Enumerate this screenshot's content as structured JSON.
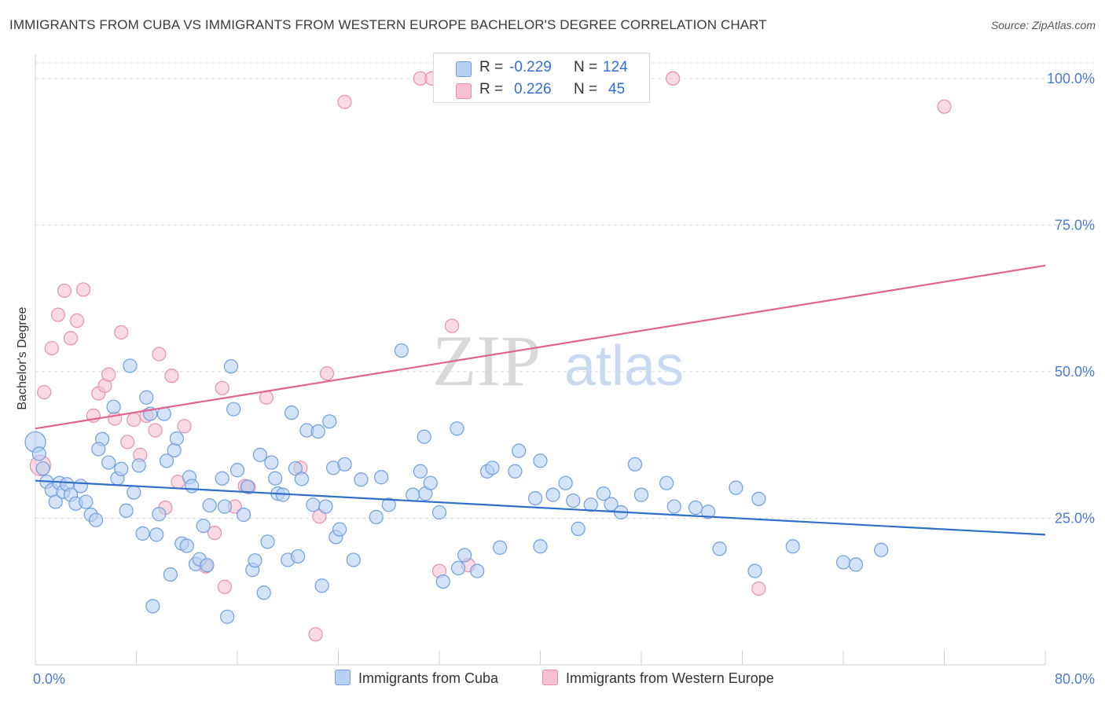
{
  "title": "IMMIGRANTS FROM CUBA VS IMMIGRANTS FROM WESTERN EUROPE BACHELOR'S DEGREE CORRELATION CHART",
  "source": "Source: ZipAtlas.com",
  "watermark": {
    "zip": "ZIP",
    "atlas": "atlas"
  },
  "legend": {
    "r_label": "R =",
    "n_label": "N =",
    "rows": [
      {
        "r": "-0.229",
        "n": "124"
      },
      {
        "r": "0.226",
        "n": "45"
      }
    ]
  },
  "colors": {
    "blue_fill": "#b8d1f2",
    "blue_stroke": "#6f9fe0",
    "blue_line": "#2f6fc8",
    "pink_fill": "#f6c1d1",
    "pink_stroke": "#e98fae",
    "pink_line": "#e0638f",
    "grid": "#d9d9d9",
    "axis_label": "#4a7cc7"
  },
  "chart_data": {
    "type": "scatter",
    "xlabel": "",
    "ylabel": "Bachelor's Degree",
    "xlim": [
      0,
      80
    ],
    "ylim": [
      0,
      104
    ],
    "x_tick_labels": [
      "0.0%",
      "80.0%"
    ],
    "y_ticks": [
      25,
      50,
      75,
      100
    ],
    "y_tick_labels": [
      "25.0%",
      "50.0%",
      "75.0%",
      "100.0%"
    ],
    "grid": true,
    "legend_position": "top-center",
    "series": [
      {
        "name": "Immigrants from Cuba",
        "trend": {
          "x": [
            0,
            80
          ],
          "y": [
            31.4,
            22.2
          ]
        },
        "points": [
          [
            0.0,
            38.0
          ],
          [
            0.3,
            36.0
          ],
          [
            0.6,
            33.5
          ],
          [
            0.9,
            31.2
          ],
          [
            1.3,
            29.8
          ],
          [
            1.6,
            27.8
          ],
          [
            1.9,
            31.0
          ],
          [
            2.2,
            29.5
          ],
          [
            2.5,
            30.8
          ],
          [
            2.8,
            29.0
          ],
          [
            3.2,
            27.5
          ],
          [
            3.6,
            30.5
          ],
          [
            4.0,
            27.8
          ],
          [
            4.4,
            25.6
          ],
          [
            4.8,
            24.7
          ],
          [
            5.3,
            38.5
          ],
          [
            5.0,
            36.8
          ],
          [
            5.8,
            34.5
          ],
          [
            6.2,
            44.0
          ],
          [
            6.5,
            31.8
          ],
          [
            6.8,
            33.4
          ],
          [
            7.2,
            26.3
          ],
          [
            7.5,
            51.0
          ],
          [
            7.8,
            29.4
          ],
          [
            8.2,
            34.0
          ],
          [
            8.5,
            22.4
          ],
          [
            8.8,
            45.6
          ],
          [
            9.1,
            42.8
          ],
          [
            9.3,
            10.0
          ],
          [
            9.6,
            22.2
          ],
          [
            9.8,
            25.7
          ],
          [
            10.2,
            42.8
          ],
          [
            10.4,
            34.8
          ],
          [
            10.7,
            15.4
          ],
          [
            11.0,
            36.6
          ],
          [
            11.2,
            38.6
          ],
          [
            11.6,
            20.7
          ],
          [
            12.0,
            20.3
          ],
          [
            12.2,
            32.0
          ],
          [
            12.4,
            30.5
          ],
          [
            12.7,
            17.2
          ],
          [
            13.0,
            18.0
          ],
          [
            13.3,
            23.7
          ],
          [
            13.6,
            17.0
          ],
          [
            13.8,
            27.2
          ],
          [
            14.8,
            31.8
          ],
          [
            15.2,
            8.2
          ],
          [
            15.5,
            50.9
          ],
          [
            15.7,
            43.6
          ],
          [
            16.0,
            33.2
          ],
          [
            16.5,
            25.6
          ],
          [
            16.8,
            30.4
          ],
          [
            17.2,
            16.2
          ],
          [
            17.4,
            17.8
          ],
          [
            17.8,
            35.8
          ],
          [
            18.1,
            12.3
          ],
          [
            18.4,
            21.0
          ],
          [
            18.7,
            34.5
          ],
          [
            19.0,
            31.8
          ],
          [
            19.2,
            29.2
          ],
          [
            19.6,
            29.0
          ],
          [
            20.0,
            17.9
          ],
          [
            20.3,
            43.0
          ],
          [
            20.6,
            33.5
          ],
          [
            20.8,
            18.5
          ],
          [
            21.1,
            31.7
          ],
          [
            21.5,
            40.0
          ],
          [
            22.0,
            27.3
          ],
          [
            22.4,
            39.8
          ],
          [
            22.7,
            13.5
          ],
          [
            23.0,
            27.0
          ],
          [
            23.3,
            41.5
          ],
          [
            23.6,
            33.6
          ],
          [
            23.8,
            21.8
          ],
          [
            24.1,
            23.1
          ],
          [
            24.5,
            34.2
          ],
          [
            25.2,
            17.9
          ],
          [
            25.8,
            31.6
          ],
          [
            27.0,
            25.2
          ],
          [
            27.4,
            32.0
          ],
          [
            28.0,
            27.3
          ],
          [
            29.0,
            53.6
          ],
          [
            29.9,
            29.0
          ],
          [
            30.5,
            33.0
          ],
          [
            30.8,
            38.9
          ],
          [
            30.9,
            29.2
          ],
          [
            31.3,
            31.0
          ],
          [
            32.0,
            26.0
          ],
          [
            32.3,
            14.2
          ],
          [
            33.4,
            40.3
          ],
          [
            34.0,
            18.7
          ],
          [
            35.0,
            16.0
          ],
          [
            35.8,
            33.0
          ],
          [
            36.2,
            33.6
          ],
          [
            36.8,
            20.0
          ],
          [
            38.0,
            33.0
          ],
          [
            38.3,
            36.5
          ],
          [
            39.6,
            28.4
          ],
          [
            40.0,
            20.2
          ],
          [
            40.0,
            34.8
          ],
          [
            41.0,
            29.0
          ],
          [
            42.0,
            31.0
          ],
          [
            42.6,
            28.0
          ],
          [
            43.0,
            23.2
          ],
          [
            44.0,
            27.3
          ],
          [
            45.0,
            29.2
          ],
          [
            45.6,
            27.4
          ],
          [
            46.4,
            26.0
          ],
          [
            47.5,
            34.2
          ],
          [
            48.0,
            29.0
          ],
          [
            50.0,
            31.0
          ],
          [
            50.6,
            27.0
          ],
          [
            52.3,
            26.8
          ],
          [
            53.3,
            26.1
          ],
          [
            54.2,
            19.8
          ],
          [
            55.5,
            30.2
          ],
          [
            57.0,
            16.0
          ],
          [
            57.3,
            28.3
          ],
          [
            60.0,
            20.2
          ],
          [
            64.0,
            17.5
          ],
          [
            65.0,
            17.1
          ],
          [
            67.0,
            19.6
          ],
          [
            15.0,
            27.0
          ],
          [
            33.5,
            16.5
          ]
        ]
      },
      {
        "name": "Immigrants from Western Europe",
        "trend": {
          "x": [
            0,
            80
          ],
          "y": [
            40.3,
            68.1
          ]
        },
        "points": [
          [
            0.4,
            34.0
          ],
          [
            0.7,
            46.5
          ],
          [
            1.3,
            54.0
          ],
          [
            1.8,
            59.7
          ],
          [
            2.3,
            63.8
          ],
          [
            2.8,
            55.7
          ],
          [
            3.3,
            58.7
          ],
          [
            3.8,
            64.0
          ],
          [
            4.6,
            42.5
          ],
          [
            5.0,
            46.3
          ],
          [
            5.5,
            47.6
          ],
          [
            5.8,
            49.5
          ],
          [
            6.3,
            42.0
          ],
          [
            6.8,
            56.7
          ],
          [
            7.3,
            38.0
          ],
          [
            7.8,
            41.8
          ],
          [
            8.3,
            35.8
          ],
          [
            8.8,
            42.5
          ],
          [
            9.5,
            40.0
          ],
          [
            9.8,
            53.0
          ],
          [
            10.3,
            26.8
          ],
          [
            10.8,
            49.3
          ],
          [
            11.3,
            31.2
          ],
          [
            11.8,
            40.7
          ],
          [
            13.5,
            16.8
          ],
          [
            14.2,
            22.5
          ],
          [
            14.8,
            47.2
          ],
          [
            15.0,
            13.3
          ],
          [
            15.8,
            27.0
          ],
          [
            16.6,
            30.5
          ],
          [
            16.9,
            30.3
          ],
          [
            18.3,
            45.6
          ],
          [
            21.0,
            33.6
          ],
          [
            22.2,
            5.2
          ],
          [
            22.5,
            25.3
          ],
          [
            23.1,
            49.7
          ],
          [
            24.5,
            96.0
          ],
          [
            30.5,
            100.0
          ],
          [
            31.4,
            100.0
          ],
          [
            32.0,
            16.0
          ],
          [
            33.0,
            57.8
          ],
          [
            34.3,
            17.0
          ],
          [
            50.5,
            100.0
          ],
          [
            57.3,
            13.0
          ],
          [
            72.0,
            95.2
          ]
        ]
      }
    ]
  },
  "bottom_legend": [
    {
      "label": "Immigrants from Cuba"
    },
    {
      "label": "Immigrants from Western Europe"
    }
  ]
}
